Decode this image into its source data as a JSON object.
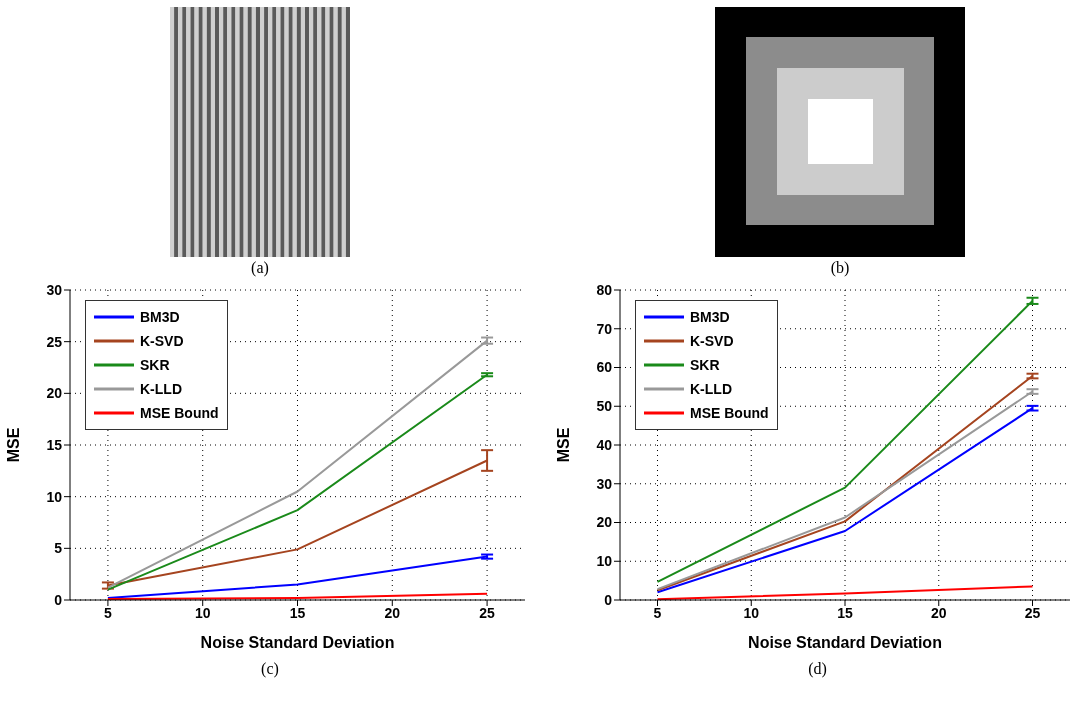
{
  "chart_data": [
    {
      "type": "other",
      "annotations": [
        "(a)"
      ]
    },
    {
      "type": "other",
      "annotations": [
        "(b)"
      ]
    },
    {
      "type": "line",
      "xlabel": "Noise Standard Deviation",
      "ylabel": "MSE",
      "annotations": [
        "(c)"
      ],
      "x": [
        5,
        15,
        25
      ],
      "xlim": [
        3,
        27
      ],
      "xticks": [
        5,
        10,
        15,
        20,
        25
      ],
      "ylim": [
        0,
        30
      ],
      "yticks": [
        0,
        5,
        10,
        15,
        20,
        25,
        30
      ],
      "grid": true,
      "legend": "top left",
      "marker": "none",
      "series": [
        {
          "name": "BM3D",
          "color": "#0000ff",
          "values": [
            0.2,
            1.5,
            4.2
          ],
          "errors": [
            null,
            null,
            0.2
          ]
        },
        {
          "name": "K-SVD",
          "color": "#a5441f",
          "values": [
            1.4,
            4.9,
            13.5
          ],
          "errors": [
            0.3,
            null,
            1.0
          ]
        },
        {
          "name": "SKR",
          "color": "#1a8a1a",
          "values": [
            1.0,
            8.7,
            21.8
          ],
          "errors": [
            null,
            null,
            0.15
          ]
        },
        {
          "name": "K-LLD",
          "color": "#999999",
          "values": [
            1.2,
            10.5,
            25.1
          ],
          "errors": [
            null,
            null,
            0.3
          ]
        },
        {
          "name": "MSE Bound",
          "color": "#ff0000",
          "values": [
            0.1,
            0.2,
            0.6
          ]
        }
      ]
    },
    {
      "type": "line",
      "xlabel": "Noise Standard Deviation",
      "ylabel": "MSE",
      "annotations": [
        "(d)"
      ],
      "x": [
        5,
        15,
        25
      ],
      "xlim": [
        3,
        27
      ],
      "xticks": [
        5,
        10,
        15,
        20,
        25
      ],
      "ylim": [
        0,
        80
      ],
      "yticks": [
        0,
        10,
        20,
        30,
        40,
        50,
        60,
        70,
        80
      ],
      "grid": true,
      "legend": "top left",
      "marker": "none",
      "series": [
        {
          "name": "BM3D",
          "color": "#0000ff",
          "values": [
            2,
            17.8,
            49.5
          ],
          "errors": [
            null,
            null,
            0.6
          ]
        },
        {
          "name": "K-SVD",
          "color": "#a5441f",
          "values": [
            2.5,
            20.3,
            57.8
          ],
          "errors": [
            null,
            null,
            0.6
          ]
        },
        {
          "name": "SKR",
          "color": "#1a8a1a",
          "values": [
            4.7,
            29,
            77.2
          ],
          "errors": [
            null,
            null,
            0.8
          ]
        },
        {
          "name": "K-LLD",
          "color": "#999999",
          "values": [
            2.8,
            21.3,
            53.8
          ],
          "errors": [
            null,
            null,
            0.6
          ]
        },
        {
          "name": "MSE Bound",
          "color": "#ff0000",
          "values": [
            0.2,
            1.7,
            3.5
          ]
        }
      ]
    }
  ]
}
